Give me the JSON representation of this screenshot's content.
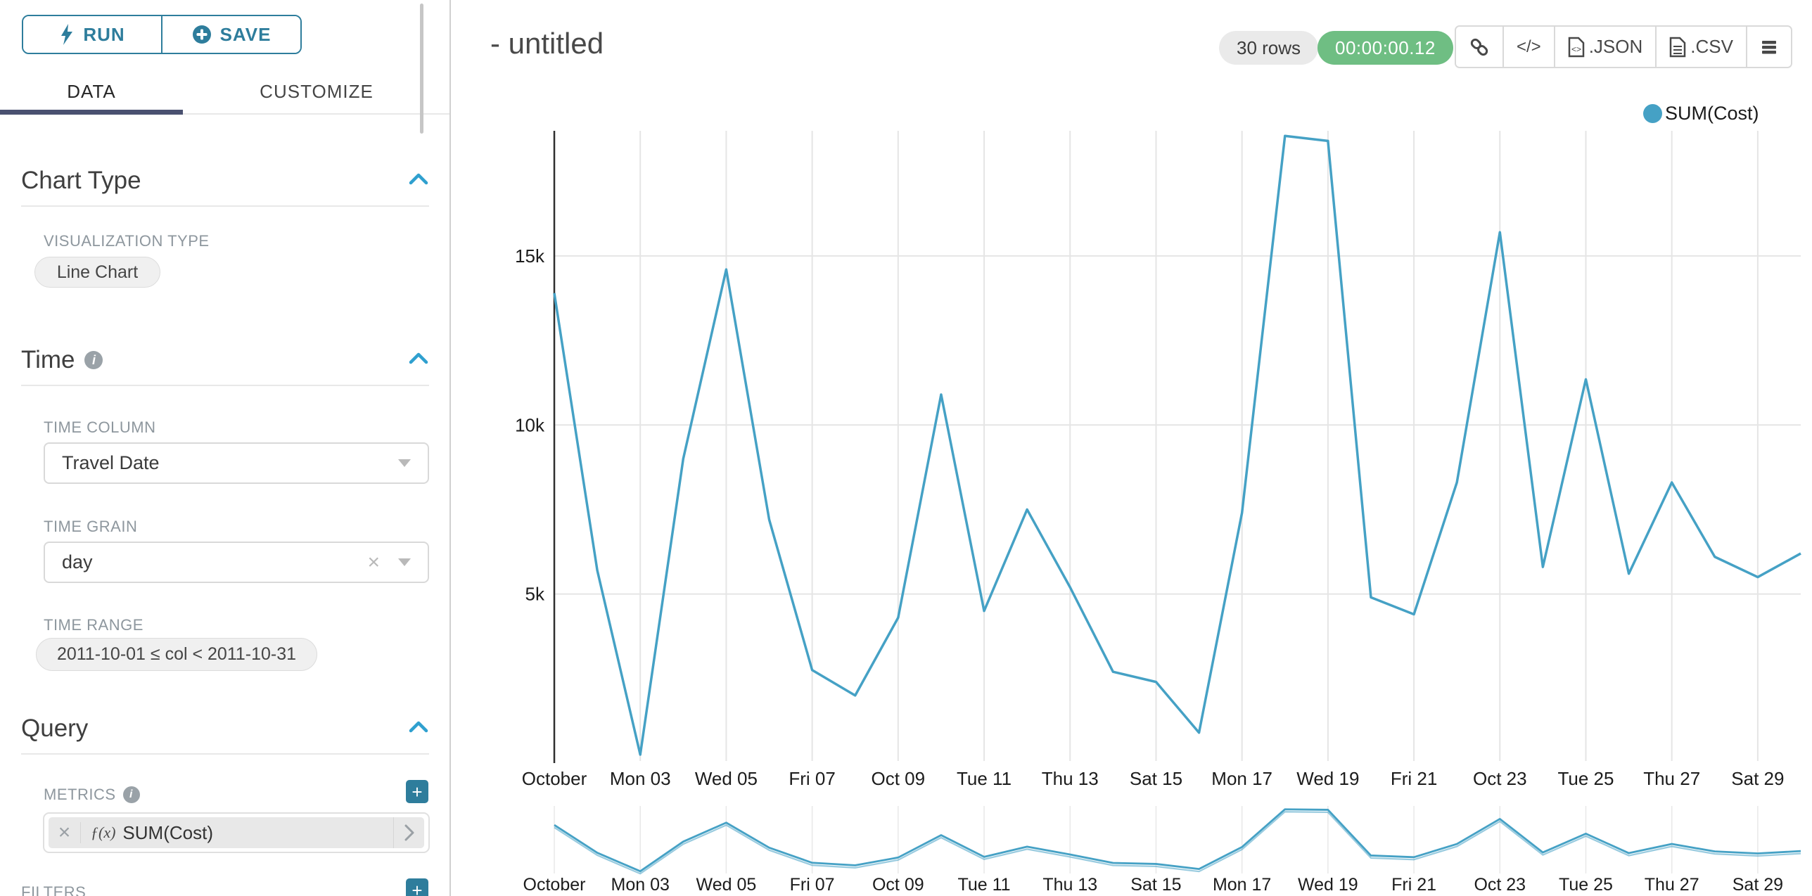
{
  "sidebar": {
    "run_label": "RUN",
    "save_label": "SAVE",
    "tabs": {
      "data": "DATA",
      "customize": "CUSTOMIZE"
    },
    "chart_type_section": {
      "title": "Chart Type",
      "viz_type_label": "VISUALIZATION TYPE",
      "viz_type_value": "Line Chart"
    },
    "time_section": {
      "title": "Time",
      "time_column_label": "TIME COLUMN",
      "time_column_value": "Travel Date",
      "time_grain_label": "TIME GRAIN",
      "time_grain_value": "day",
      "time_range_label": "TIME RANGE",
      "time_range_value": "2011-10-01 ≤ col < 2011-10-31"
    },
    "query_section": {
      "title": "Query",
      "metrics_label": "METRICS",
      "metric_fx": "ƒ(x)",
      "metric_value": "SUM(Cost)",
      "filters_label": "FILTERS"
    }
  },
  "header": {
    "title": "- untitled",
    "rows_badge": "30 rows",
    "timer_badge": "00:00:00.12",
    "export_json_label": ".JSON",
    "export_csv_label": ".CSV"
  },
  "legend": {
    "label": "SUM(Cost)"
  },
  "icons": {
    "run": "lightning-bolt",
    "save": "plus-circle",
    "section-collapse": "chevron-up",
    "select-open": "caret-down",
    "clear": "×",
    "metric-remove": "×",
    "metric-open": "chevron-right",
    "share": "link",
    "embed": "code </>",
    "export-file": "document",
    "more": "hamburger-menu",
    "info": "i-circle"
  },
  "colors": {
    "accent_teal": "#2e7d9c",
    "chevron_blue": "#2fa0cf",
    "tab_underline": "#4a5170",
    "line": "#45a1c5",
    "timer_green": "#6fbe83",
    "badge_gray": "#eaeaea",
    "grid": "#e5e5e5",
    "axis": "#2f2f2f",
    "tick_text": "#1c1c1c"
  },
  "chart_data": {
    "type": "line",
    "title": "- untitled",
    "xlabel": "",
    "ylabel": "",
    "legend": {
      "position": "top-right",
      "entries": [
        "SUM(Cost)"
      ]
    },
    "grid": true,
    "x_unit": "day of October 2011",
    "day_of_month": [
      1,
      2,
      3,
      4,
      5,
      6,
      7,
      8,
      9,
      10,
      11,
      12,
      13,
      14,
      15,
      16,
      17,
      18,
      19,
      20,
      21,
      22,
      23,
      24,
      25,
      26,
      27,
      28,
      29,
      30
    ],
    "series": [
      {
        "name": "SUM(Cost)",
        "values": [
          13900,
          5700,
          250,
          9000,
          14600,
          7200,
          2750,
          2000,
          4300,
          10900,
          4500,
          7500,
          5200,
          2700,
          2400,
          900,
          7400,
          18550,
          18400,
          4900,
          4400,
          8300,
          15700,
          5800,
          11350,
          5600,
          8300,
          6100,
          5500,
          6200
        ]
      }
    ],
    "x_tick_days": [
      1,
      3,
      5,
      7,
      9,
      11,
      13,
      15,
      17,
      19,
      21,
      23,
      25,
      27,
      29
    ],
    "x_tick_labels": [
      "October",
      "Mon 03",
      "Wed 05",
      "Fri 07",
      "Oct 09",
      "Tue 11",
      "Thu 13",
      "Sat 15",
      "Mon 17",
      "Wed 19",
      "Fri 21",
      "Oct 23",
      "Tue 25",
      "Thu 27",
      "Sat 29"
    ],
    "y_ticks": [
      5000,
      10000,
      15000
    ],
    "y_tick_labels": [
      "5k",
      "10k",
      "15k"
    ],
    "ylim": [
      0,
      18700
    ],
    "context_chart": "same series repeated in small brush chart below main chart"
  }
}
